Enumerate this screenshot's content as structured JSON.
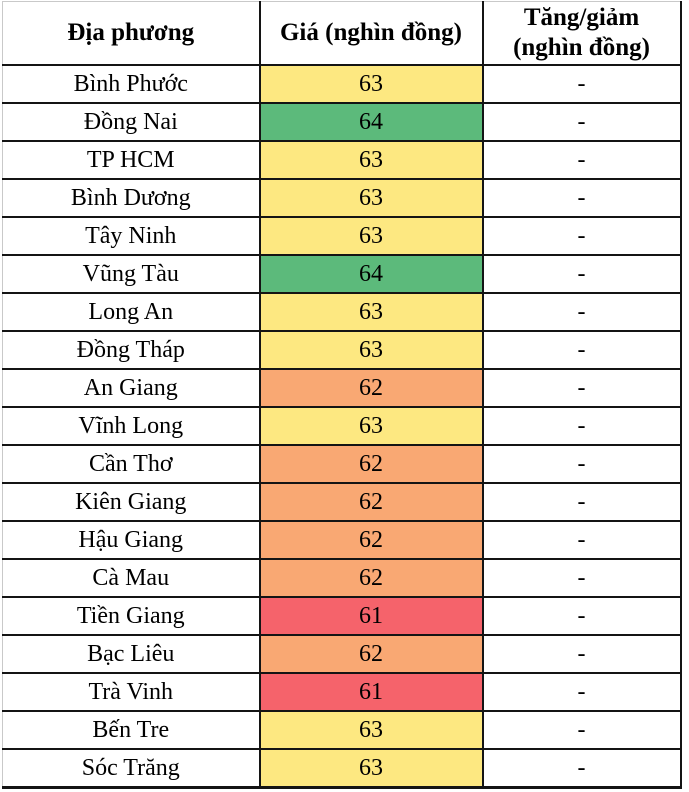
{
  "chart_data": {
    "type": "table",
    "columns": [
      "Địa phương",
      "Giá (nghìn đồng)",
      "Tăng/giảm (nghìn đồng)"
    ],
    "rows": [
      {
        "province": "Bình Phước",
        "price": "63",
        "change": "-"
      },
      {
        "province": "Đồng Nai",
        "price": "64",
        "change": "-"
      },
      {
        "province": "TP HCM",
        "price": "63",
        "change": "-"
      },
      {
        "province": "Bình Dương",
        "price": "63",
        "change": "-"
      },
      {
        "province": "Tây Ninh",
        "price": "63",
        "change": "-"
      },
      {
        "province": "Vũng Tàu",
        "price": "64",
        "change": "-"
      },
      {
        "province": "Long An",
        "price": "63",
        "change": "-"
      },
      {
        "province": "Đồng Tháp",
        "price": "63",
        "change": "-"
      },
      {
        "province": "An Giang",
        "price": "62",
        "change": "-"
      },
      {
        "province": "Vĩnh Long",
        "price": "63",
        "change": "-"
      },
      {
        "province": "Cần Thơ",
        "price": "62",
        "change": "-"
      },
      {
        "province": "Kiên Giang",
        "price": "62",
        "change": "-"
      },
      {
        "province": "Hậu Giang",
        "price": "62",
        "change": "-"
      },
      {
        "province": "Cà Mau",
        "price": "62",
        "change": "-"
      },
      {
        "province": "Tiền Giang",
        "price": "61",
        "change": "-"
      },
      {
        "province": "Bạc Liêu",
        "price": "62",
        "change": "-"
      },
      {
        "province": "Trà Vinh",
        "price": "61",
        "change": "-"
      },
      {
        "province": "Bến Tre",
        "price": "63",
        "change": "-"
      },
      {
        "province": "Sóc Trăng",
        "price": "63",
        "change": "-"
      }
    ],
    "price_color_scale": {
      "61": "#F5636B",
      "62": "#F9A873",
      "63": "#FDE881",
      "64": "#5CBA7B"
    },
    "layout": {
      "header_text_color": "#000000",
      "body_text_color": "#000000",
      "grid_color": "#141414"
    }
  }
}
